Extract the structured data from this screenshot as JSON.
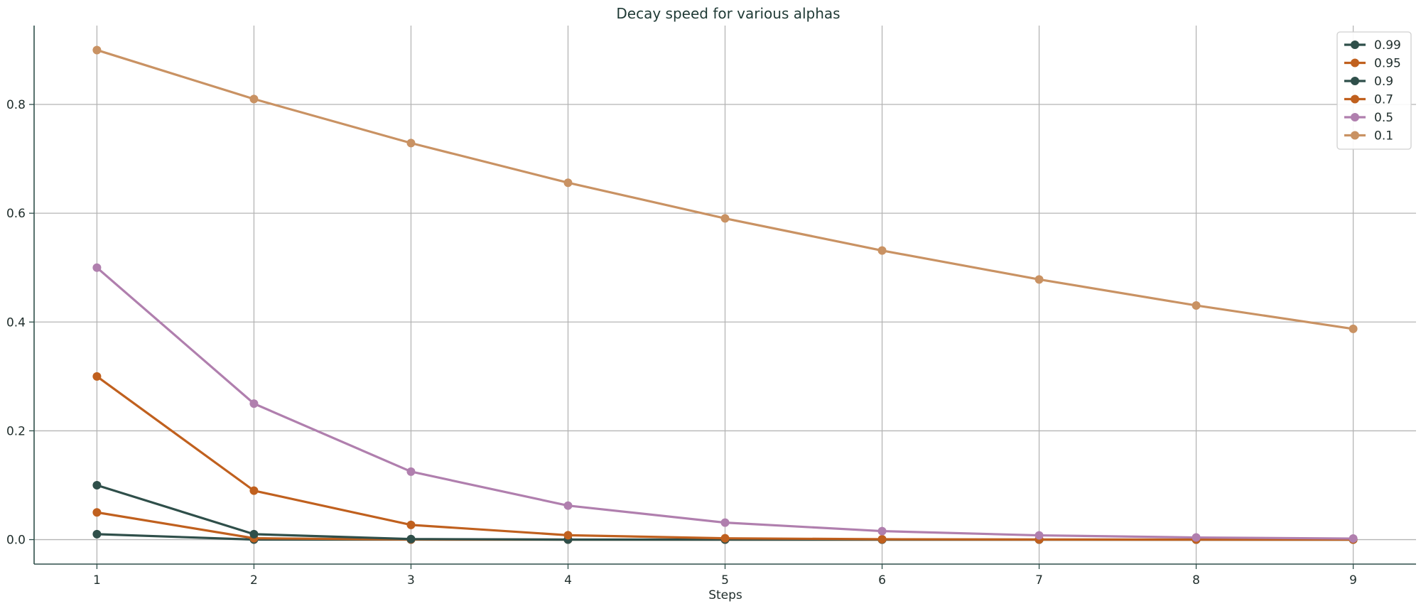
{
  "chart_data": {
    "type": "line",
    "title": "Decay speed for various alphas",
    "xlabel": "Steps",
    "ylabel": "",
    "x": [
      1,
      2,
      3,
      4,
      5,
      6,
      7,
      8,
      9
    ],
    "xticks": [
      1,
      2,
      3,
      4,
      5,
      6,
      7,
      8,
      9
    ],
    "yticks": [
      0.0,
      0.2,
      0.4,
      0.6,
      0.8
    ],
    "ytick_labels": [
      "0.0",
      "0.2",
      "0.4",
      "0.6",
      "0.8"
    ],
    "xlim": [
      0.6,
      9.4
    ],
    "ylim": [
      -0.045,
      0.945
    ],
    "grid": true,
    "legend_position": "top-right",
    "series": [
      {
        "name": "0.99",
        "color": "#2f4f4a",
        "values": [
          0.01,
          0.0001,
          1e-06,
          1e-08,
          0.0,
          0.0,
          0.0,
          0.0,
          0.0
        ]
      },
      {
        "name": "0.95",
        "color": "#c0601e",
        "values": [
          0.05,
          0.0025,
          0.000125,
          6.25e-06,
          0.0,
          0.0,
          0.0,
          0.0,
          0.0
        ]
      },
      {
        "name": "0.9",
        "color": "#2f4f4a",
        "values": [
          0.1,
          0.01,
          0.001,
          0.0001,
          1e-05,
          1e-06,
          0.0,
          0.0,
          0.0
        ]
      },
      {
        "name": "0.7",
        "color": "#c0601e",
        "values": [
          0.3,
          0.09,
          0.027,
          0.0081,
          0.00243,
          0.000729,
          0.000219,
          6.56e-05,
          1.97e-05
        ]
      },
      {
        "name": "0.5",
        "color": "#b07fae",
        "values": [
          0.5,
          0.25,
          0.125,
          0.0625,
          0.03125,
          0.015625,
          0.0078125,
          0.00390625,
          0.001953
        ]
      },
      {
        "name": "0.1",
        "color": "#c99263",
        "values": [
          0.9,
          0.81,
          0.729,
          0.6561,
          0.59049,
          0.531441,
          0.478297,
          0.430467,
          0.38742
        ]
      }
    ]
  }
}
